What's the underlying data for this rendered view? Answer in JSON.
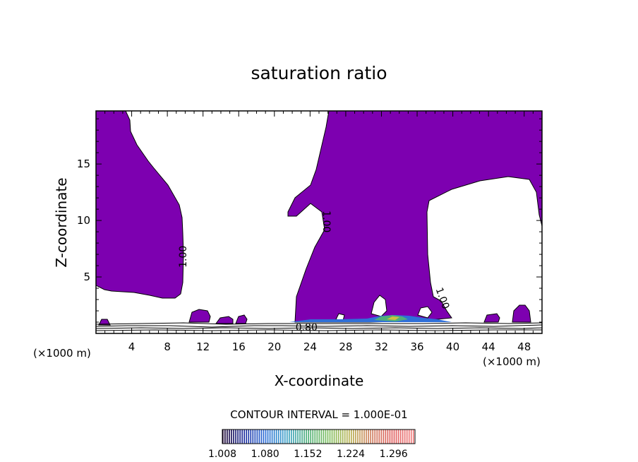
{
  "chart_data": {
    "type": "contour",
    "title": "saturation ratio",
    "xlabel": "X-coordinate",
    "ylabel": "Z-coordinate",
    "x_unit": "(×1000 m)",
    "xlim": [
      0,
      50
    ],
    "ylim": [
      0,
      19.7
    ],
    "x_ticks": [
      4,
      8,
      12,
      16,
      20,
      24,
      28,
      32,
      36,
      40,
      44,
      48
    ],
    "y_ticks": [
      5,
      10,
      15
    ],
    "fill_threshold": 1.0,
    "fill_color": "#7d00b0",
    "contour_labels": [
      {
        "text": "1.00",
        "x": 9.8,
        "y": 6.8,
        "rotate": -90
      },
      {
        "text": "1.00",
        "x": 25.8,
        "y": 9.9,
        "rotate": 90
      },
      {
        "text": "1.00",
        "x": 38.8,
        "y": 3.1,
        "rotate": 70
      },
      {
        "text": "0.80",
        "x": 23.6,
        "y": 0.5,
        "rotate": 0
      }
    ],
    "contour_interval_text": "CONTOUR INTERVAL = 1.000E-01",
    "colorbar": {
      "ticks": [
        "1.008",
        "1.080",
        "1.152",
        "1.224",
        "1.296"
      ],
      "min": 1.008,
      "max": 1.332,
      "stops": [
        "#1a0030",
        "#1e2fa0",
        "#2f6fd8",
        "#3ba0c8",
        "#4fb07a",
        "#7fc060",
        "#b8b050",
        "#d08060",
        "#e06060",
        "#f08080"
      ]
    }
  }
}
